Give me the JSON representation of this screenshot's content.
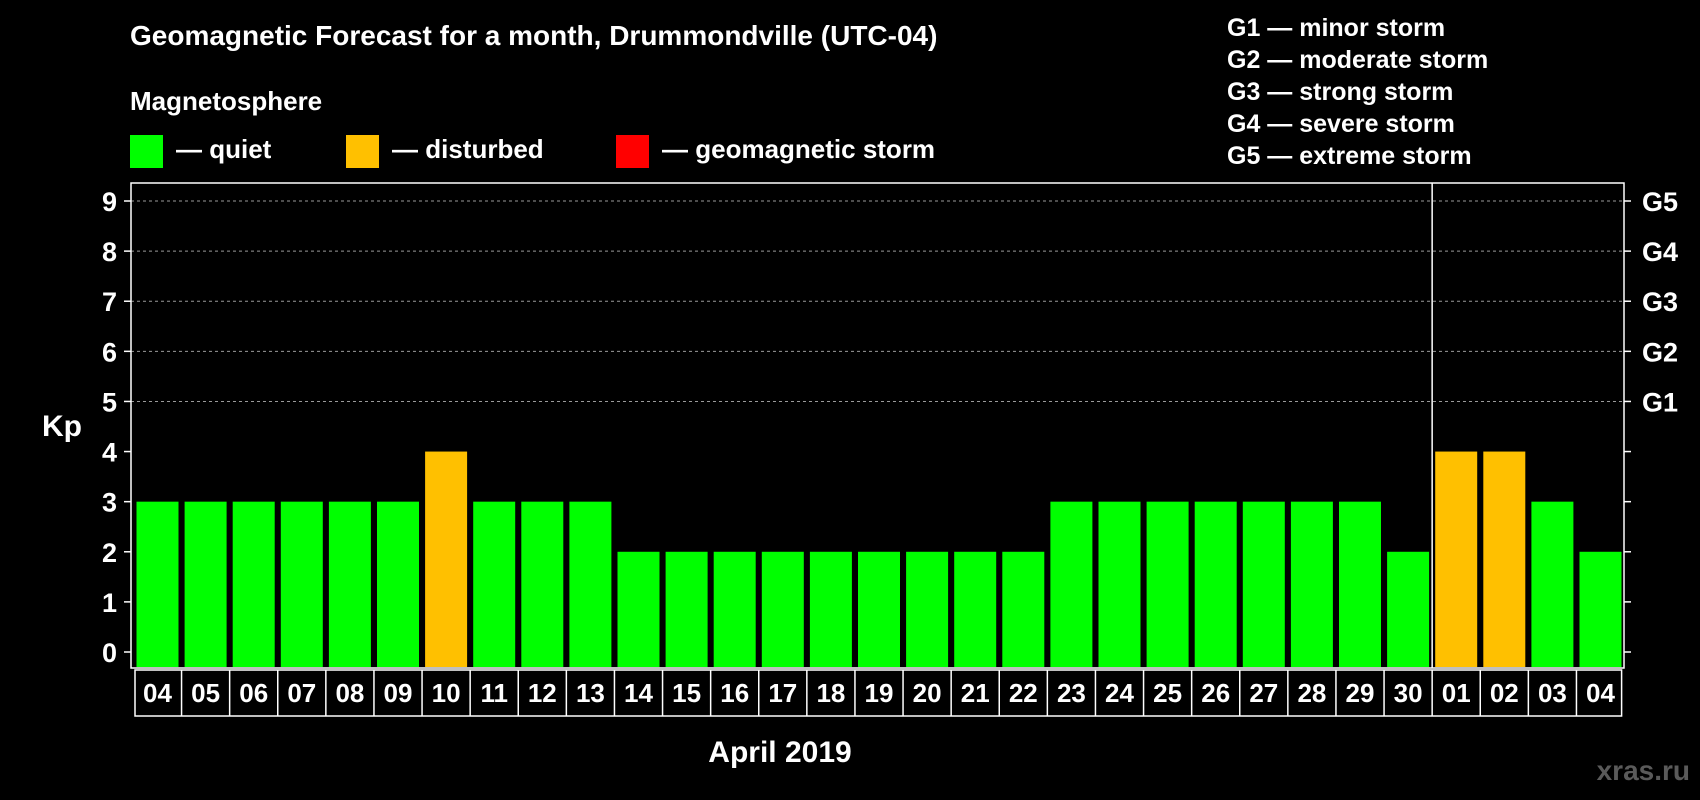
{
  "header": {
    "title": "Geomagnetic Forecast for a month, Drummondville (UTC-04)",
    "magnetosphere_label": "Magnetosphere"
  },
  "legend": {
    "quiet": "— quiet",
    "disturbed": "— disturbed",
    "storm": "— geomagnetic storm"
  },
  "storm_scale": [
    "G1 — minor storm",
    "G2 — moderate storm",
    "G3 — strong storm",
    "G4 — severe storm",
    "G5 — extreme storm"
  ],
  "colors": {
    "quiet": "#00ff00",
    "disturbed": "#ffc000",
    "storm": "#ff0000",
    "background": "#000000",
    "foreground": "#ffffff",
    "grid": "#9a9a9a"
  },
  "chart_data": {
    "type": "bar",
    "title": "Geomagnetic Forecast for a month, Drummondville (UTC-04)",
    "xlabel": "April 2019",
    "ylabel": "Kp",
    "ylim": [
      0,
      9
    ],
    "yticks": [
      0,
      1,
      2,
      3,
      4,
      5,
      6,
      7,
      8,
      9
    ],
    "right_axis_labels": [
      {
        "value": 5,
        "label": "G1"
      },
      {
        "value": 6,
        "label": "G2"
      },
      {
        "value": 7,
        "label": "G3"
      },
      {
        "value": 8,
        "label": "G4"
      },
      {
        "value": 9,
        "label": "G5"
      }
    ],
    "categories": [
      "04",
      "05",
      "06",
      "07",
      "08",
      "09",
      "10",
      "11",
      "12",
      "13",
      "14",
      "15",
      "16",
      "17",
      "18",
      "19",
      "20",
      "21",
      "22",
      "23",
      "24",
      "25",
      "26",
      "27",
      "28",
      "29",
      "30",
      "01",
      "02",
      "03",
      "04"
    ],
    "values": [
      3,
      3,
      3,
      3,
      3,
      3,
      4,
      3,
      3,
      3,
      2,
      2,
      2,
      2,
      2,
      2,
      2,
      2,
      2,
      3,
      3,
      3,
      3,
      3,
      3,
      3,
      2,
      4,
      4,
      3,
      2
    ],
    "status": [
      "quiet",
      "quiet",
      "quiet",
      "quiet",
      "quiet",
      "quiet",
      "disturbed",
      "quiet",
      "quiet",
      "quiet",
      "quiet",
      "quiet",
      "quiet",
      "quiet",
      "quiet",
      "quiet",
      "quiet",
      "quiet",
      "quiet",
      "quiet",
      "quiet",
      "quiet",
      "quiet",
      "quiet",
      "quiet",
      "quiet",
      "quiet",
      "disturbed",
      "disturbed",
      "quiet",
      "quiet"
    ],
    "month_boundary_after": "30",
    "grid": true
  },
  "watermark": "xras.ru"
}
